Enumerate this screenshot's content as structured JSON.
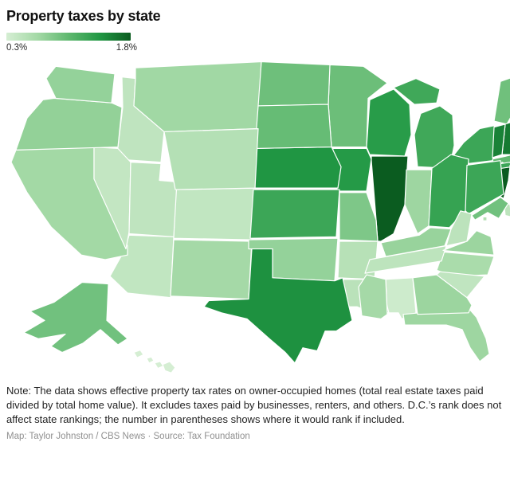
{
  "header": {
    "title": "Property taxes by state"
  },
  "legend": {
    "min_label": "0.3%",
    "max_label": "1.8%"
  },
  "note": {
    "text": "Note: The data shows effective property tax rates on owner-occupied homes (total real estate taxes paid divided by total home value). It excludes taxes paid by businesses, renters, and others. D.C.’s rank does not affect state rankings; the number in parentheses shows where it would rank if included."
  },
  "credit": {
    "text": "Map: Taylor Johnston / CBS News · Source: Tax Foundation"
  },
  "chart_data": {
    "type": "choropleth",
    "unit": "%",
    "title": "Property taxes by state",
    "legend_position": "top-left",
    "scale": {
      "min": 0.3,
      "max": 1.8,
      "stops": [
        {
          "value": 0.3,
          "color": "#d5eed3"
        },
        {
          "value": 0.675,
          "color": "#a4d9a6"
        },
        {
          "value": 1.05,
          "color": "#5fb86f"
        },
        {
          "value": 1.425,
          "color": "#219844"
        },
        {
          "value": 1.8,
          "color": "#0b5c20"
        }
      ]
    },
    "states": [
      {
        "abbr": "AL",
        "name": "Alabama",
        "value": 0.36
      },
      {
        "abbr": "AK",
        "name": "Alaska",
        "value": 0.95
      },
      {
        "abbr": "AZ",
        "name": "Arizona",
        "value": 0.45
      },
      {
        "abbr": "AR",
        "name": "Arkansas",
        "value": 0.53
      },
      {
        "abbr": "CA",
        "name": "California",
        "value": 0.68
      },
      {
        "abbr": "CO",
        "name": "Colorado",
        "value": 0.45
      },
      {
        "abbr": "CT",
        "name": "Connecticut",
        "value": 1.78
      },
      {
        "abbr": "DE",
        "name": "Delaware",
        "value": 0.48
      },
      {
        "abbr": "FL",
        "name": "Florida",
        "value": 0.71
      },
      {
        "abbr": "GA",
        "name": "Georgia",
        "value": 0.72
      },
      {
        "abbr": "HI",
        "name": "Hawaii",
        "value": 0.27
      },
      {
        "abbr": "ID",
        "name": "Idaho",
        "value": 0.47
      },
      {
        "abbr": "IL",
        "name": "Illinois",
        "value": 1.95
      },
      {
        "abbr": "IN",
        "name": "Indiana",
        "value": 0.71
      },
      {
        "abbr": "IA",
        "name": "Iowa",
        "value": 1.4
      },
      {
        "abbr": "KS",
        "name": "Kansas",
        "value": 1.26
      },
      {
        "abbr": "KY",
        "name": "Kentucky",
        "value": 0.74
      },
      {
        "abbr": "LA",
        "name": "Louisiana",
        "value": 0.51
      },
      {
        "abbr": "ME",
        "name": "Maine",
        "value": 0.96
      },
      {
        "abbr": "MD",
        "name": "Maryland",
        "value": 0.95
      },
      {
        "abbr": "MA",
        "name": "Massachusetts",
        "value": 1.04
      },
      {
        "abbr": "MI",
        "name": "Michigan",
        "value": 1.24
      },
      {
        "abbr": "MN",
        "name": "Minnesota",
        "value": 0.98
      },
      {
        "abbr": "MS",
        "name": "Mississippi",
        "value": 0.67
      },
      {
        "abbr": "MO",
        "name": "Missouri",
        "value": 0.88
      },
      {
        "abbr": "MT",
        "name": "Montana",
        "value": 0.69
      },
      {
        "abbr": "NE",
        "name": "Nebraska",
        "value": 1.44
      },
      {
        "abbr": "NV",
        "name": "Nevada",
        "value": 0.44
      },
      {
        "abbr": "NH",
        "name": "New Hampshire",
        "value": 1.61
      },
      {
        "abbr": "NJ",
        "name": "New Jersey",
        "value": 2.08
      },
      {
        "abbr": "NM",
        "name": "New Mexico",
        "value": 0.67
      },
      {
        "abbr": "NY",
        "name": "New York",
        "value": 1.26
      },
      {
        "abbr": "NC",
        "name": "North Carolina",
        "value": 0.63
      },
      {
        "abbr": "ND",
        "name": "North Dakota",
        "value": 0.97
      },
      {
        "abbr": "OH",
        "name": "Ohio",
        "value": 1.3
      },
      {
        "abbr": "OK",
        "name": "Oklahoma",
        "value": 0.76
      },
      {
        "abbr": "OR",
        "name": "Oregon",
        "value": 0.77
      },
      {
        "abbr": "PA",
        "name": "Pennsylvania",
        "value": 1.26
      },
      {
        "abbr": "RI",
        "name": "Rhode Island",
        "value": 1.23
      },
      {
        "abbr": "SC",
        "name": "South Carolina",
        "value": 0.46
      },
      {
        "abbr": "SD",
        "name": "South Dakota",
        "value": 1.01
      },
      {
        "abbr": "TN",
        "name": "Tennessee",
        "value": 0.48
      },
      {
        "abbr": "TX",
        "name": "Texas",
        "value": 1.47
      },
      {
        "abbr": "UT",
        "name": "Utah",
        "value": 0.47
      },
      {
        "abbr": "VT",
        "name": "Vermont",
        "value": 1.56
      },
      {
        "abbr": "VA",
        "name": "Virginia",
        "value": 0.72
      },
      {
        "abbr": "WA",
        "name": "Washington",
        "value": 0.76
      },
      {
        "abbr": "WV",
        "name": "West Virginia",
        "value": 0.49
      },
      {
        "abbr": "WI",
        "name": "Wisconsin",
        "value": 1.38
      },
      {
        "abbr": "WY",
        "name": "Wyoming",
        "value": 0.55
      },
      {
        "abbr": "DC",
        "name": "District of Columbia",
        "value": 0.57
      }
    ]
  }
}
